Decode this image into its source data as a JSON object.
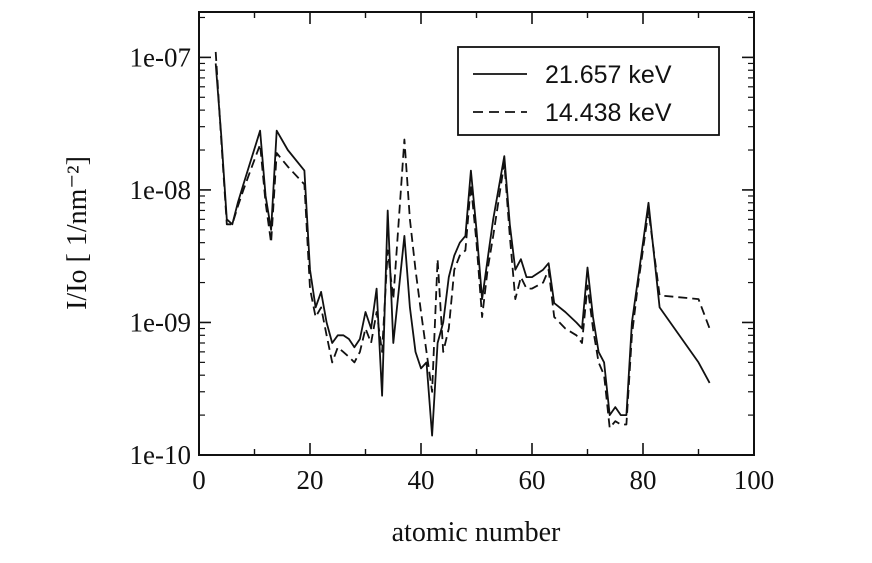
{
  "chart_data": {
    "type": "line",
    "xlabel": "atomic number",
    "ylabel": "I/Io  [ 1/nm⁻²]",
    "xlim": [
      0,
      100
    ],
    "ylim": [
      1e-10,
      2.2e-07
    ],
    "yscale": "log",
    "grid": false,
    "legend_position": "top-right",
    "x_ticks": [
      0,
      20,
      40,
      60,
      80,
      100
    ],
    "x_tick_labels": [
      "0",
      "20",
      "40",
      "60",
      "80",
      "100"
    ],
    "y_ticks": [
      1e-10,
      1e-09,
      1e-08,
      1e-07
    ],
    "y_tick_labels": [
      "1e-10",
      "1e-09",
      "1e-08",
      "1e-07"
    ],
    "series": [
      {
        "name": "21.657 keV",
        "style": "solid",
        "x": [
          3,
          4,
          5,
          6,
          7,
          8,
          9,
          11,
          12,
          13,
          14,
          16,
          19,
          20,
          21,
          22,
          23,
          24,
          25,
          26,
          27,
          28,
          29,
          30,
          31,
          32,
          33,
          34,
          35,
          37,
          38,
          39,
          40,
          41,
          42,
          43,
          44,
          45,
          46,
          47,
          48,
          49,
          50,
          51,
          52,
          53,
          55,
          56,
          57,
          58,
          59,
          60,
          62,
          63,
          64,
          66,
          68,
          69,
          70,
          71,
          72,
          73,
          74,
          75,
          76,
          77,
          78,
          79,
          81,
          83,
          90,
          92
        ],
        "values": [
          9e-08,
          2.6e-08,
          6e-09,
          5.5e-09,
          8e-09,
          1.1e-08,
          1.5e-08,
          2.8e-08,
          9e-09,
          5e-09,
          2.8e-08,
          2e-08,
          1.4e-08,
          2.5e-09,
          1.3e-09,
          1.7e-09,
          1e-09,
          7e-10,
          8e-10,
          8e-10,
          7.5e-10,
          6.5e-10,
          7.5e-10,
          1.2e-09,
          9e-10,
          1.8e-09,
          2.8e-10,
          7e-09,
          7e-10,
          4.5e-09,
          1.3e-09,
          6e-10,
          4.5e-10,
          5e-10,
          1.4e-10,
          7e-10,
          1e-09,
          2.2e-09,
          3.2e-09,
          4e-09,
          4.5e-09,
          1.4e-08,
          5e-09,
          1.5e-09,
          3e-09,
          6e-09,
          1.8e-08,
          5.5e-09,
          2.5e-09,
          3e-09,
          2.2e-09,
          2.2e-09,
          2.5e-09,
          2.8e-09,
          1.4e-09,
          1.2e-09,
          1e-09,
          9e-10,
          2.6e-09,
          1.1e-09,
          6e-10,
          5e-10,
          2e-10,
          2.3e-10,
          2e-10,
          2e-10,
          1e-09,
          2e-09,
          8e-09,
          1.3e-09,
          5e-10,
          3.5e-10
        ]
      },
      {
        "name": "14.438 keV",
        "style": "dashed",
        "x": [
          3,
          4,
          5,
          6,
          7,
          8,
          9,
          11,
          12,
          13,
          14,
          16,
          19,
          20,
          21,
          22,
          23,
          24,
          25,
          26,
          27,
          28,
          29,
          30,
          31,
          32,
          33,
          34,
          35,
          37,
          38,
          39,
          40,
          41,
          42,
          43,
          44,
          45,
          46,
          47,
          48,
          49,
          50,
          51,
          52,
          53,
          55,
          56,
          57,
          58,
          59,
          60,
          62,
          63,
          64,
          66,
          68,
          69,
          70,
          71,
          72,
          73,
          74,
          75,
          76,
          77,
          78,
          79,
          81,
          83,
          90,
          92
        ],
        "values": [
          1.1e-07,
          2.4e-08,
          5.5e-09,
          5.5e-09,
          7.5e-09,
          1e-08,
          1.3e-08,
          2.2e-08,
          8e-09,
          4e-09,
          1.9e-08,
          1.5e-08,
          1.1e-08,
          1.8e-09,
          1.1e-09,
          1.3e-09,
          8e-10,
          5e-10,
          6.5e-10,
          6e-10,
          5.5e-10,
          5e-10,
          6e-10,
          9e-10,
          7e-10,
          1.2e-09,
          6e-10,
          3.5e-09,
          1.5e-09,
          2.4e-08,
          6e-09,
          2.5e-09,
          1.2e-09,
          6e-10,
          3e-10,
          3e-09,
          6e-10,
          9e-10,
          2.5e-09,
          3.2e-09,
          3.5e-09,
          1.1e-08,
          4e-09,
          1.1e-09,
          2.5e-09,
          4.5e-09,
          1.6e-08,
          4.5e-09,
          1.5e-09,
          2.2e-09,
          1.8e-09,
          1.8e-09,
          2e-09,
          2.5e-09,
          1.1e-09,
          9e-10,
          8e-10,
          7e-10,
          1.9e-09,
          9e-10,
          5e-10,
          4e-10,
          1.6e-10,
          1.8e-10,
          1.7e-10,
          1.7e-10,
          8e-10,
          1.8e-09,
          7e-09,
          1.6e-09,
          1.5e-09,
          9e-10
        ]
      }
    ]
  }
}
